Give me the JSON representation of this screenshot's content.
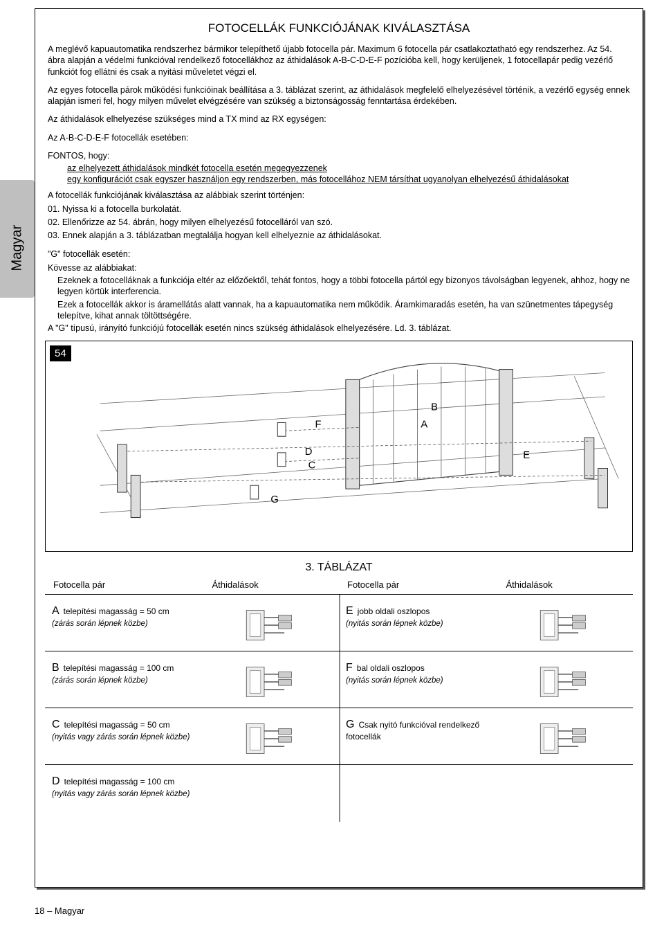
{
  "sideTab": "Magyar",
  "title": "FOTOCELLÁK FUNKCIÓJÁNAK KIVÁLASZTÁSA",
  "para1": "A meglévő kapuautomatika rendszerhez bármikor telepíthető újabb fotocella pár. Maximum 6 fotocella pár csatlakoztatható egy rendszerhez. Az 54. ábra alapján a védelmi funkcióval rendelkező fotocellákhoz az áthidalások A-B-C-D-E-F pozícióba kell, hogy kerüljenek, 1 fotocellapár pedig vezérlő funkciót fog ellátni és csak a nyitási műveletet végzi el.",
  "para2": "Az egyes fotocella párok működési funkcióinak beállítása a 3. táblázat szerint, az áthidalások megfelelő elhelyezésével történik, a vezérlő egység ennek alapján ismeri fel, hogy milyen művelet elvégzésére van szükség a biztonságosság fenntartása érdekében.",
  "para3": "Az áthidalások elhelyezése szükséges mind a TX mind az RX egységen:",
  "para4": "Az A-B-C-D-E-F fotocellák esetében:",
  "fontos": "FONTOS, hogy:",
  "ul1": "az elhelyezett áthidalások mindkét fotocella esetén megegyezzenek",
  "ul2": "egy konfigurációt csak egyszer használjon egy rendszerben, más fotocellához NEM társíthat ugyanolyan elhelyezésű áthidalásokat",
  "para5": "A fotocellák funkciójának kiválasztása az alábbiak szerint történjen:",
  "step01": "01.  Nyissa ki a fotocella burkolatát.",
  "step02": "02.  Ellenőrizze az 54. ábrán, hogy milyen elhelyezésű fotocelláról van szó.",
  "step03": "03.  Ennek alapján a 3. táblázatban megtalálja hogyan kell elhelyeznie az áthidalásokat.",
  "gHead": "\"G\" fotocellák esetén:",
  "gFollow": "Kövesse az alábbiakat:",
  "gP1": "Ezeknek a fotocelláknak a funkciója eltér az előzőektől, tehát fontos, hogy a többi fotocella pártól egy bizonyos távolságban legyenek, ahhoz, hogy ne legyen körtük interferencia.",
  "gP2": "Ezek a fotocellák akkor is áramellátás alatt vannak, ha a kapuautomatika nem működik. Áramkimaradás esetén, ha van szünetmentes tápegység telepítve, kihat annak töltöttségére.",
  "gP3": "A \"G\" típusú, irányító funkciójú fotocellák esetén nincs szükség áthidalások elhelyezésére. Ld. 3. táblázat.",
  "diagramBadge": "54",
  "diagramLabels": {
    "A": "A",
    "B": "B",
    "C": "C",
    "D": "D",
    "E": "E",
    "F": "F",
    "G": "G"
  },
  "tableTitle": "3. TÁBLÁZAT",
  "th1": "Fotocella pár",
  "th2": "Áthidalások",
  "th3": "Fotocella pár",
  "th4": "Áthidalások",
  "rows": [
    {
      "l": "A",
      "ld": "telepítési magasság = 50 cm",
      "ls": "(zárás során lépnek közbe)",
      "r": "E",
      "rd": "jobb oldali oszlopos",
      "rs": "(nyitás során lépnek közbe)",
      "limg": true,
      "rimg": true
    },
    {
      "l": "B",
      "ld": "telepítési magasság = 100 cm",
      "ls": "(zárás során lépnek közbe)",
      "r": "F",
      "rd": "bal oldali oszlopos",
      "rs": "(nyitás során lépnek közbe)",
      "limg": true,
      "rimg": true
    },
    {
      "l": "C",
      "ld": "telepítési magasság = 50 cm",
      "ls": "(nyitás vagy zárás során lépnek közbe)",
      "r": "G",
      "rd": "Csak nyitó funkcióval rendelkező fotocellák",
      "rs": "",
      "limg": true,
      "rimg": true
    },
    {
      "l": "D",
      "ld": "telepítési magasság = 100 cm",
      "ls": "(nyitás vagy zárás során lépnek közbe)",
      "r": "",
      "rd": "",
      "rs": "",
      "limg": false,
      "rimg": false
    }
  ],
  "footer": "18 – Magyar"
}
